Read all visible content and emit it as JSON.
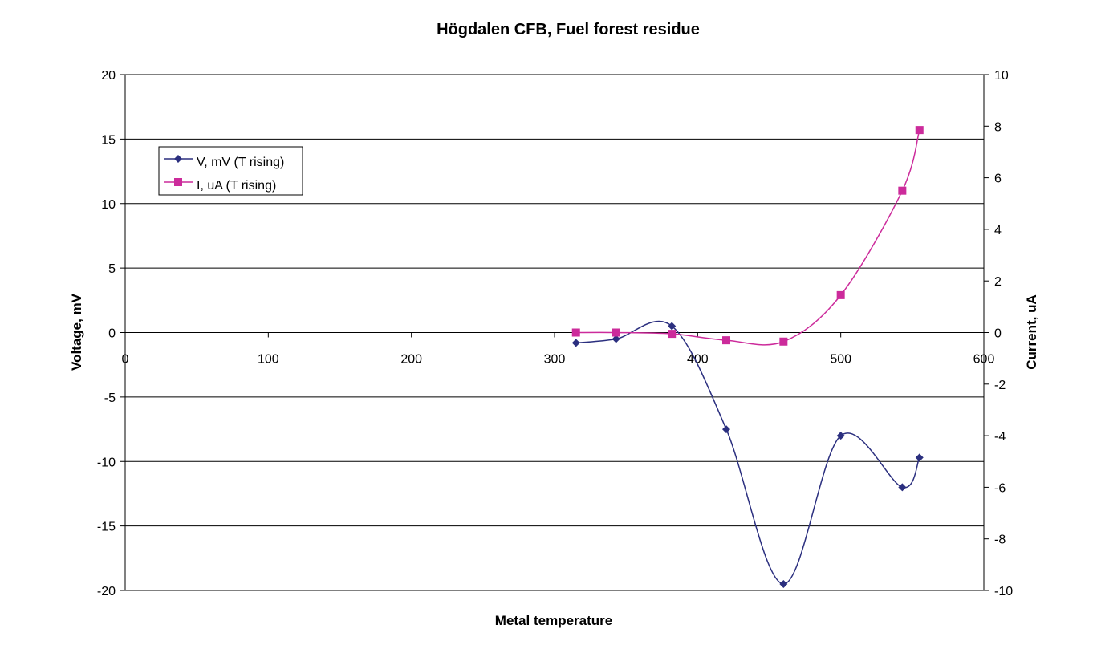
{
  "chart_data": {
    "type": "line",
    "title": "Högdalen CFB, Fuel forest residue",
    "xlabel": "Metal temperature",
    "ylabel": "Voltage, mV",
    "y2label": "Current, uA",
    "xlim": [
      0,
      600
    ],
    "ylim": [
      -20,
      20
    ],
    "y2lim": [
      -10,
      10
    ],
    "x_ticks": [
      "0",
      "100",
      "200",
      "300",
      "400",
      "500",
      "600"
    ],
    "y_ticks": [
      "20",
      "15",
      "10",
      "5",
      "0",
      "-5",
      "-10",
      "-15",
      "-20"
    ],
    "y2_ticks": [
      "10",
      "8",
      "6",
      "4",
      "2",
      "0",
      "-2",
      "-4",
      "-6",
      "-8",
      "-10"
    ],
    "grid": "horizontal",
    "legend": "upper-left",
    "series": [
      {
        "name": "V, mV (T rising)",
        "axis": "left",
        "color": "#2b2f7f",
        "marker": "diamond",
        "x": [
          315,
          343,
          382,
          420,
          460,
          500,
          543,
          555
        ],
        "y": [
          -0.8,
          -0.5,
          0.5,
          -7.5,
          -19.5,
          -8,
          -12,
          -9.7
        ]
      },
      {
        "name": "I, uA (T rising)",
        "axis": "right",
        "color": "#cc2b9b",
        "marker": "square",
        "x": [
          315,
          343,
          382,
          420,
          460,
          500,
          543,
          555
        ],
        "y": [
          0,
          0,
          -0.05,
          -0.3,
          -0.35,
          1.45,
          5.5,
          7.85
        ]
      }
    ]
  }
}
